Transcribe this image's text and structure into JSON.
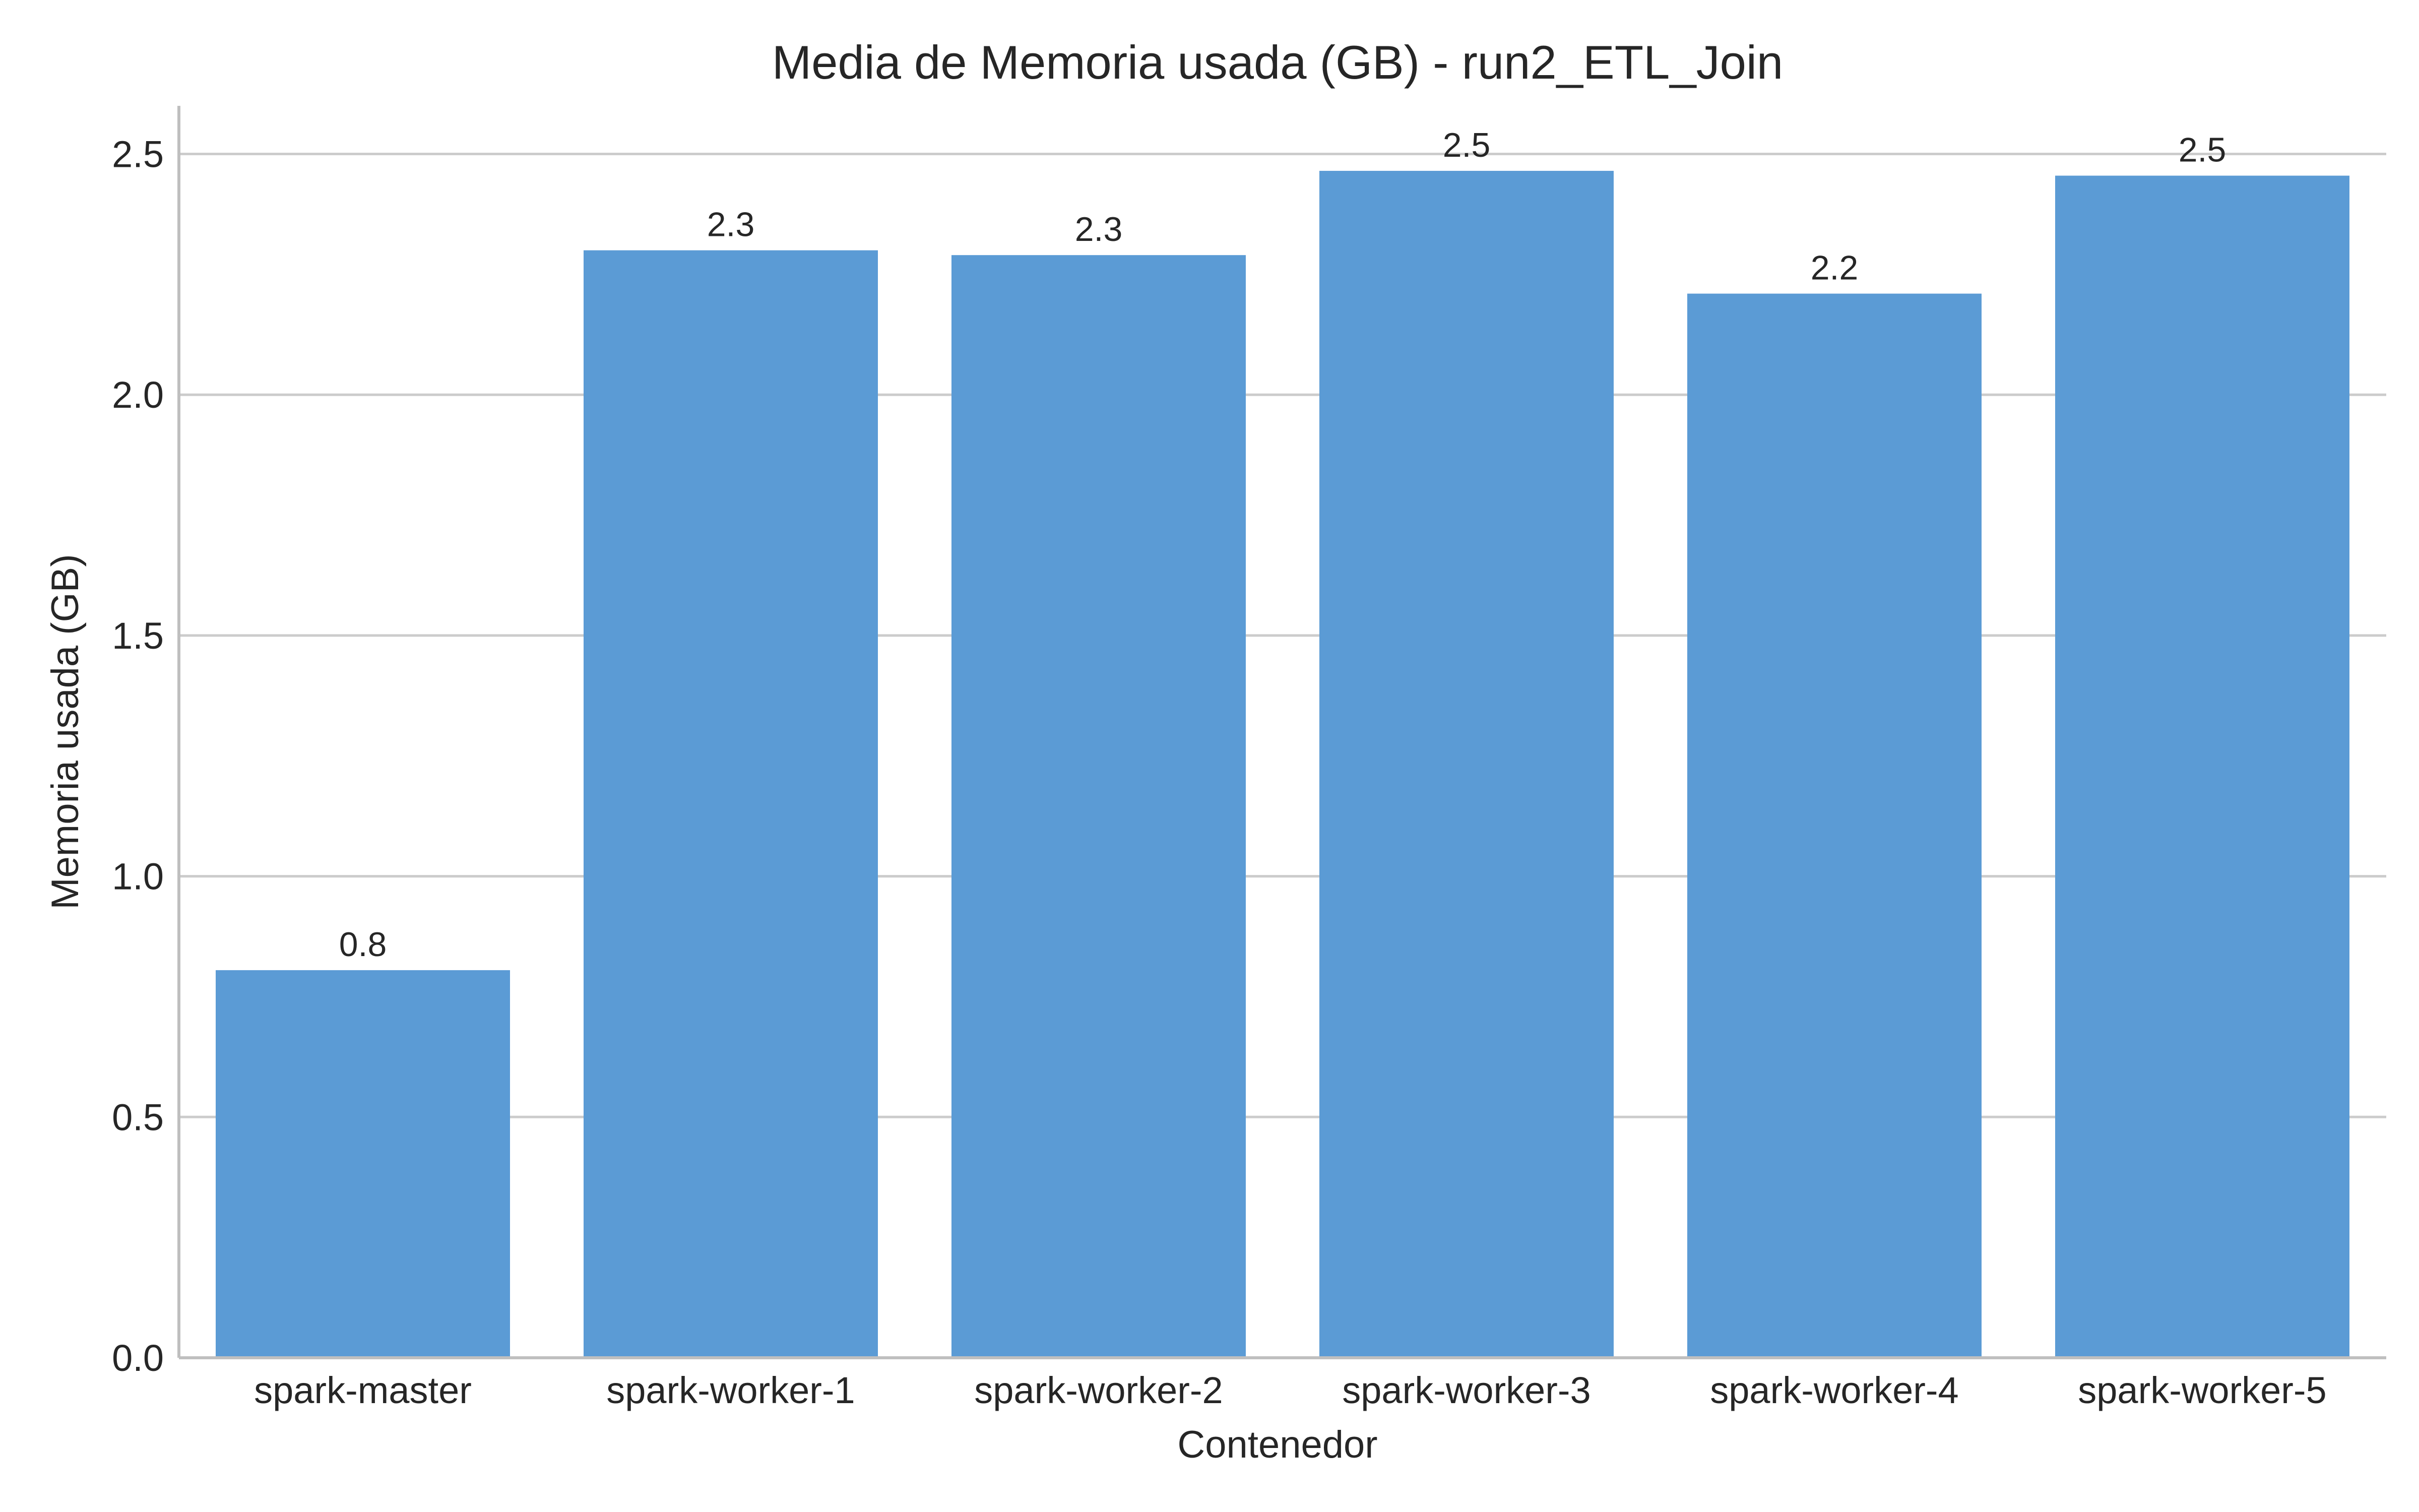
{
  "chart_data": {
    "type": "bar",
    "title": "Media de Memoria usada (GB) - run2_ETL_Join",
    "xlabel": "Contenedor",
    "ylabel": "Memoria usada (GB)",
    "categories": [
      "spark-master",
      "spark-worker-1",
      "spark-worker-2",
      "spark-worker-3",
      "spark-worker-4",
      "spark-worker-5"
    ],
    "values": [
      0.805,
      2.3,
      2.29,
      2.465,
      2.21,
      2.455
    ],
    "data_labels": [
      "0.8",
      "2.3",
      "2.3",
      "2.5",
      "2.2",
      "2.5"
    ],
    "ylim": [
      0,
      2.6
    ],
    "yticks": [
      0.0,
      0.5,
      1.0,
      1.5,
      2.0,
      2.5
    ],
    "ytick_labels": [
      "0.0",
      "0.5",
      "1.0",
      "1.5",
      "2.0",
      "2.5"
    ],
    "grid": "horizontal",
    "colors": {
      "bar": "#5b9bd5",
      "grid": "#cccccc",
      "axis": "#bfbfbf",
      "text": "#262626"
    }
  }
}
